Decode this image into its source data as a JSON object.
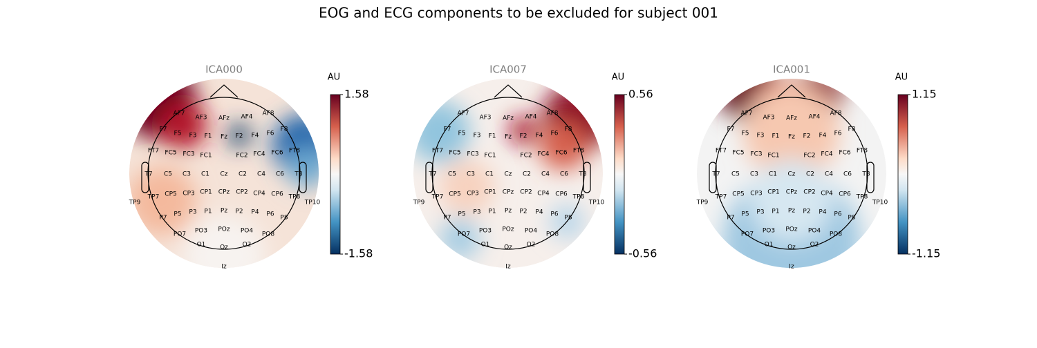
{
  "chart_data": [
    {
      "type": "topomap",
      "title": "ICA000",
      "colorbar_label": "AU",
      "clim": [
        -1.58,
        1.58
      ],
      "cticks": [
        -1.58,
        1.58
      ]
    },
    {
      "type": "topomap",
      "title": "ICA007",
      "colorbar_label": "AU",
      "clim": [
        -0.56,
        0.56
      ],
      "cticks": [
        -0.56,
        0.56
      ]
    },
    {
      "type": "topomap",
      "title": "ICA001",
      "colorbar_label": "AU",
      "clim": [
        -1.15,
        1.15
      ],
      "cticks": [
        -1.15,
        1.15
      ]
    }
  ],
  "suptitle": "EOG and ECG components to be excluded for subject 001",
  "electrodes": [
    "AF7",
    "AF3",
    "AFz",
    "AF4",
    "AF8",
    "F7",
    "F5",
    "F3",
    "F1",
    "Fz",
    "F2",
    "F4",
    "F6",
    "F8",
    "FT7",
    "FC5",
    "FC3",
    "FC1",
    "FC2",
    "FC4",
    "FC6",
    "FT8",
    "T7",
    "C5",
    "C3",
    "C1",
    "Cz",
    "C2",
    "C4",
    "C6",
    "T8",
    "TP7",
    "CP5",
    "CP3",
    "CP1",
    "CPz",
    "CP2",
    "CP4",
    "CP6",
    "TP8",
    "TP9",
    "TP10",
    "P7",
    "P5",
    "P3",
    "P1",
    "Pz",
    "P2",
    "P4",
    "P6",
    "P8",
    "PO7",
    "PO3",
    "POz",
    "PO4",
    "PO8",
    "O1",
    "Oz",
    "O2",
    "Iz"
  ]
}
